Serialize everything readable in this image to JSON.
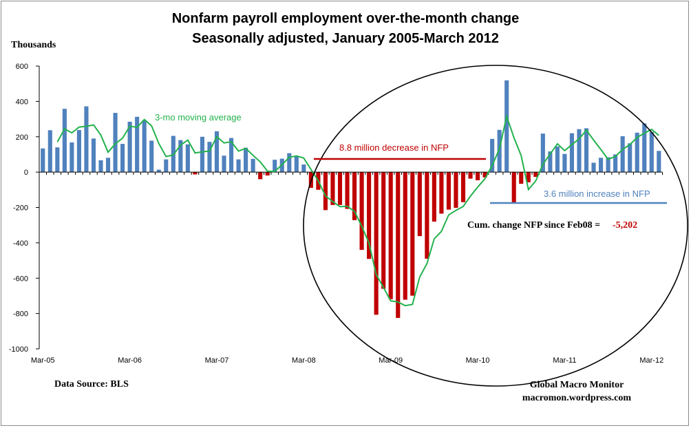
{
  "chart_data": {
    "type": "bar",
    "title": "Nonfarm payroll employment over-the-month change",
    "subtitle": "Seasonally adjusted, January 2005-March 2012",
    "ylabel": "Thousands",
    "ylim": [
      -1000,
      600
    ],
    "yticks": [
      600,
      400,
      200,
      0,
      -200,
      -400,
      -600,
      -800,
      -1000
    ],
    "xtick_labels": [
      "Mar-05",
      "Mar-06",
      "Mar-07",
      "Mar-08",
      "Mar-09",
      "Mar-10",
      "Mar-11",
      "Mar-12"
    ],
    "xtick_indices": [
      0,
      12,
      24,
      36,
      48,
      60,
      72,
      84
    ],
    "values": [
      134,
      237,
      140,
      358,
      168,
      238,
      372,
      190,
      67,
      81,
      335,
      160,
      285,
      313,
      294,
      178,
      14,
      72,
      205,
      181,
      157,
      -13,
      200,
      171,
      231,
      93,
      193,
      72,
      138,
      75,
      -40,
      -19,
      70,
      76,
      107,
      90,
      43,
      -89,
      -100,
      -215,
      -186,
      -186,
      -208,
      -272,
      -440,
      -491,
      -807,
      -660,
      -719,
      -825,
      -722,
      -699,
      -362,
      -490,
      -280,
      -235,
      -212,
      -202,
      -170,
      -37,
      -46,
      -30,
      188,
      239,
      519,
      -171,
      -66,
      -58,
      -27,
      218,
      117,
      145,
      103,
      220,
      243,
      248,
      53,
      81,
      84,
      100,
      203,
      163,
      223,
      275,
      227,
      120
    ],
    "moving_average": {
      "label": "3-mo moving average",
      "color": "#22b14c"
    },
    "colors": {
      "positive": "#4f81bd",
      "negative": "#c00000"
    },
    "annotations": {
      "decrease": "8.8 million decrease in NFP",
      "increase": "3.6 million increase in NFP",
      "cum_label": "Cum. change NFP since Feb08 =",
      "cum_value": "-5,202"
    },
    "source": "Data Source:  BLS",
    "credit_1": "Global Macro Monitor",
    "credit_2": "macromon.wordpress.com"
  }
}
